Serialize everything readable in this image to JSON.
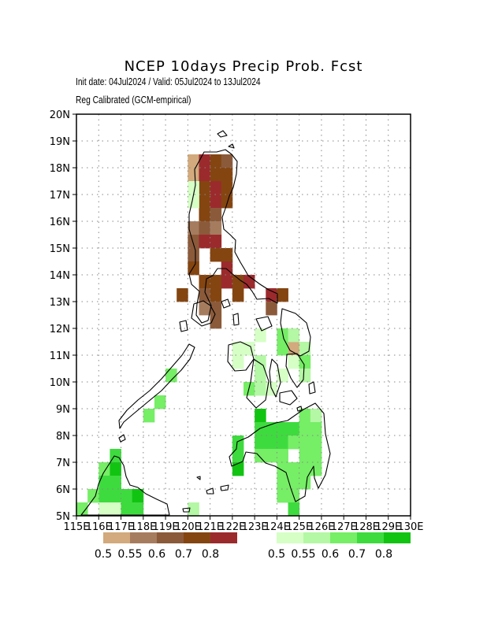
{
  "title": "NCEP 10days Precip Prob. Fcst",
  "init_line": "Init date: 04Jul2024 / Valid: 05Jul2024 to 13Jul2024",
  "calib_line": "Reg Calibrated (GCM-empirical)",
  "map": {
    "lon_range": [
      115,
      130
    ],
    "lat_range": [
      5,
      20
    ],
    "lon_ticks": [
      "115E",
      "116E",
      "117E",
      "118E",
      "119E",
      "120E",
      "121E",
      "122E",
      "123E",
      "124E",
      "125E",
      "126E",
      "127E",
      "128E",
      "129E",
      "130E"
    ],
    "lat_ticks": [
      "5N",
      "6N",
      "7N",
      "8N",
      "9N",
      "10N",
      "11N",
      "12N",
      "13N",
      "14N",
      "15N",
      "16N",
      "17N",
      "18N",
      "19N",
      "20N"
    ],
    "grid_lines": "dotted",
    "cell_size_deg": 0.5,
    "dry_cells": [
      [
        120.25,
        18.25,
        "t1"
      ],
      [
        120.25,
        17.75,
        "t1"
      ],
      [
        120.75,
        18.25,
        "t5"
      ],
      [
        120.75,
        17.75,
        "t5"
      ],
      [
        121.25,
        18.25,
        "t4"
      ],
      [
        121.75,
        18.25,
        "t3"
      ],
      [
        121.25,
        17.75,
        "t4"
      ],
      [
        121.75,
        17.75,
        "t4"
      ],
      [
        120.75,
        17.25,
        "t4"
      ],
      [
        121.25,
        17.25,
        "t5"
      ],
      [
        121.75,
        17.25,
        "t4"
      ],
      [
        120.75,
        16.75,
        "t4"
      ],
      [
        121.25,
        16.75,
        "t5"
      ],
      [
        121.75,
        16.75,
        "t4"
      ],
      [
        120.75,
        16.25,
        "t4"
      ],
      [
        121.25,
        16.25,
        "t3"
      ],
      [
        120.25,
        15.75,
        "t2"
      ],
      [
        120.75,
        15.75,
        "t3"
      ],
      [
        121.25,
        15.75,
        "t2"
      ],
      [
        120.25,
        15.25,
        "t3"
      ],
      [
        120.75,
        15.25,
        "t5"
      ],
      [
        121.25,
        15.25,
        "t5"
      ],
      [
        120.25,
        14.75,
        "t3"
      ],
      [
        121.25,
        14.75,
        "t4"
      ],
      [
        121.75,
        14.75,
        "t4"
      ],
      [
        121.75,
        14.25,
        "t5"
      ],
      [
        120.25,
        14.25,
        "t4"
      ],
      [
        120.75,
        13.75,
        "t4"
      ],
      [
        121.25,
        13.75,
        "t4"
      ],
      [
        121.75,
        13.75,
        "t5"
      ],
      [
        122.25,
        13.75,
        "t4"
      ],
      [
        122.75,
        13.75,
        "t5"
      ],
      [
        119.75,
        13.25,
        "t4"
      ],
      [
        120.75,
        13.25,
        "t3"
      ],
      [
        121.25,
        13.25,
        "t4"
      ],
      [
        122.25,
        13.25,
        "t4"
      ],
      [
        123.75,
        13.25,
        "t5"
      ],
      [
        124.25,
        13.25,
        "t4"
      ],
      [
        123.75,
        12.75,
        "t3"
      ],
      [
        120.75,
        12.75,
        "t2"
      ],
      [
        121.25,
        12.75,
        "t3"
      ],
      [
        121.25,
        12.25,
        "t3"
      ],
      [
        124.75,
        11.25,
        "t1"
      ]
    ],
    "wet_cells": [
      [
        120.25,
        17.25,
        "t1"
      ],
      [
        120.25,
        16.75,
        "t1"
      ],
      [
        124.25,
        11.75,
        "t3"
      ],
      [
        124.75,
        11.75,
        "t2"
      ],
      [
        123.25,
        11.75,
        "t1"
      ],
      [
        122.25,
        11.25,
        "t1"
      ],
      [
        122.75,
        11.25,
        "t1"
      ],
      [
        124.25,
        11.25,
        "t3"
      ],
      [
        125.25,
        11.25,
        "t2"
      ],
      [
        122.25,
        10.75,
        "t1"
      ],
      [
        123.25,
        10.75,
        "t2"
      ],
      [
        124.75,
        10.75,
        "t1"
      ],
      [
        125.25,
        10.75,
        "t3"
      ],
      [
        123.25,
        10.25,
        "t2"
      ],
      [
        124.25,
        10.25,
        "t1"
      ],
      [
        125.25,
        10.25,
        "t2"
      ],
      [
        122.75,
        9.75,
        "t3"
      ],
      [
        123.25,
        9.75,
        "t2"
      ],
      [
        123.75,
        9.75,
        "t1"
      ],
      [
        119.25,
        10.25,
        "t3"
      ],
      [
        118.75,
        9.25,
        "t3"
      ],
      [
        118.25,
        8.75,
        "t3"
      ],
      [
        123.25,
        8.75,
        "t5"
      ],
      [
        125.25,
        8.75,
        "t3"
      ],
      [
        125.75,
        8.75,
        "t2"
      ],
      [
        123.25,
        8.25,
        "t4"
      ],
      [
        123.75,
        8.25,
        "t4"
      ],
      [
        124.25,
        8.25,
        "t4"
      ],
      [
        124.75,
        8.25,
        "t4"
      ],
      [
        125.25,
        8.25,
        "t3"
      ],
      [
        125.75,
        8.25,
        "t3"
      ],
      [
        122.25,
        7.75,
        "t4"
      ],
      [
        123.25,
        7.75,
        "t4"
      ],
      [
        123.75,
        7.75,
        "t4"
      ],
      [
        124.25,
        7.75,
        "t4"
      ],
      [
        124.75,
        7.75,
        "t3"
      ],
      [
        125.25,
        7.75,
        "t3"
      ],
      [
        125.75,
        7.75,
        "t3"
      ],
      [
        122.25,
        7.25,
        "t4"
      ],
      [
        123.25,
        7.25,
        "t3"
      ],
      [
        123.75,
        7.25,
        "t3"
      ],
      [
        124.25,
        7.25,
        "t3"
      ],
      [
        125.25,
        7.25,
        "t3"
      ],
      [
        125.75,
        7.25,
        "t3"
      ],
      [
        116.75,
        7.25,
        "t4"
      ],
      [
        122.25,
        6.75,
        "t5"
      ],
      [
        124.25,
        6.75,
        "t3"
      ],
      [
        124.75,
        6.75,
        "t3"
      ],
      [
        125.25,
        6.75,
        "t3"
      ],
      [
        125.75,
        6.75,
        "t3"
      ],
      [
        116.25,
        6.75,
        "t3"
      ],
      [
        116.75,
        6.75,
        "t5"
      ],
      [
        116.25,
        6.25,
        "t4"
      ],
      [
        116.75,
        6.25,
        "t4"
      ],
      [
        124.25,
        6.25,
        "t3"
      ],
      [
        124.75,
        6.25,
        "t3"
      ],
      [
        125.25,
        6.25,
        "t3"
      ],
      [
        116.25,
        5.75,
        "t4"
      ],
      [
        116.75,
        5.75,
        "t4"
      ],
      [
        117.25,
        5.75,
        "t4"
      ],
      [
        117.75,
        5.75,
        "t5"
      ],
      [
        115.75,
        5.75,
        "t3"
      ],
      [
        124.25,
        5.75,
        "t3"
      ],
      [
        124.75,
        5.75,
        "t3"
      ],
      [
        115.25,
        5.25,
        "t3"
      ],
      [
        116.25,
        5.25,
        "t1"
      ],
      [
        116.75,
        5.25,
        "t1"
      ],
      [
        117.25,
        5.25,
        "t4"
      ],
      [
        117.75,
        5.25,
        "t4"
      ],
      [
        120.25,
        5.25,
        "t2"
      ],
      [
        124.75,
        5.25,
        "t4"
      ]
    ]
  },
  "legend": {
    "dry": {
      "labels": [
        "0.5",
        "0.55",
        "0.6",
        "0.7",
        "0.8"
      ],
      "colors": [
        "#d2aa7d",
        "#a67c5e",
        "#8b5a3a",
        "#844511",
        "#9b2a2d"
      ]
    },
    "wet": {
      "labels": [
        "0.5",
        "0.55",
        "0.6",
        "0.7",
        "0.8"
      ],
      "colors": [
        "#d6ffc6",
        "#b4f7a4",
        "#76ee66",
        "#3edb3e",
        "#12c412"
      ]
    }
  }
}
